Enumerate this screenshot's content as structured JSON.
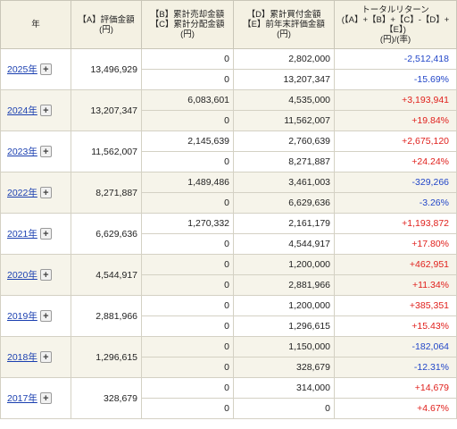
{
  "header": {
    "year": "年",
    "a_line1": "【A】評価金額",
    "a_line2": "(円)",
    "bc_line1": "【B】累計売却金額",
    "bc_line2": "【C】累計分配金額",
    "bc_line3": "(円)",
    "de_line1": "【D】累計買付金額",
    "de_line2": "【E】前年末評価金額",
    "de_line3": "(円)",
    "t_line1": "トータルリターン",
    "t_line2": "(【A】+【B】+【C】-【D】+",
    "t_line3": "【E】)",
    "t_line4": "(円)/(率)"
  },
  "expand_label": "+",
  "rows": [
    {
      "year": "2025年",
      "a": "13,496,929",
      "b": "0",
      "c": "0",
      "d": "2,802,000",
      "e": "13,207,347",
      "ret_yen": "-2,512,418",
      "ret_pct": "-15.69%",
      "sign": "neg"
    },
    {
      "year": "2024年",
      "a": "13,207,347",
      "b": "6,083,601",
      "c": "0",
      "d": "4,535,000",
      "e": "11,562,007",
      "ret_yen": "+3,193,941",
      "ret_pct": "+19.84%",
      "sign": "pos"
    },
    {
      "year": "2023年",
      "a": "11,562,007",
      "b": "2,145,639",
      "c": "0",
      "d": "2,760,639",
      "e": "8,271,887",
      "ret_yen": "+2,675,120",
      "ret_pct": "+24.24%",
      "sign": "pos"
    },
    {
      "year": "2022年",
      "a": "8,271,887",
      "b": "1,489,486",
      "c": "0",
      "d": "3,461,003",
      "e": "6,629,636",
      "ret_yen": "-329,266",
      "ret_pct": "-3.26%",
      "sign": "neg"
    },
    {
      "year": "2021年",
      "a": "6,629,636",
      "b": "1,270,332",
      "c": "0",
      "d": "2,161,179",
      "e": "4,544,917",
      "ret_yen": "+1,193,872",
      "ret_pct": "+17.80%",
      "sign": "pos"
    },
    {
      "year": "2020年",
      "a": "4,544,917",
      "b": "0",
      "c": "0",
      "d": "1,200,000",
      "e": "2,881,966",
      "ret_yen": "+462,951",
      "ret_pct": "+11.34%",
      "sign": "pos"
    },
    {
      "year": "2019年",
      "a": "2,881,966",
      "b": "0",
      "c": "0",
      "d": "1,200,000",
      "e": "1,296,615",
      "ret_yen": "+385,351",
      "ret_pct": "+15.43%",
      "sign": "pos"
    },
    {
      "year": "2018年",
      "a": "1,296,615",
      "b": "0",
      "c": "0",
      "d": "1,150,000",
      "e": "328,679",
      "ret_yen": "-182,064",
      "ret_pct": "-12.31%",
      "sign": "neg"
    },
    {
      "year": "2017年",
      "a": "328,679",
      "b": "0",
      "c": "0",
      "d": "314,000",
      "e": "0",
      "ret_yen": "+14,679",
      "ret_pct": "+4.67%",
      "sign": "pos"
    }
  ],
  "colors": {
    "header_bg": "#f4f1e3",
    "shade_bg": "#f6f4ea",
    "positive": "#e0201c",
    "negative": "#2246c8",
    "link": "#1a3fb0"
  }
}
